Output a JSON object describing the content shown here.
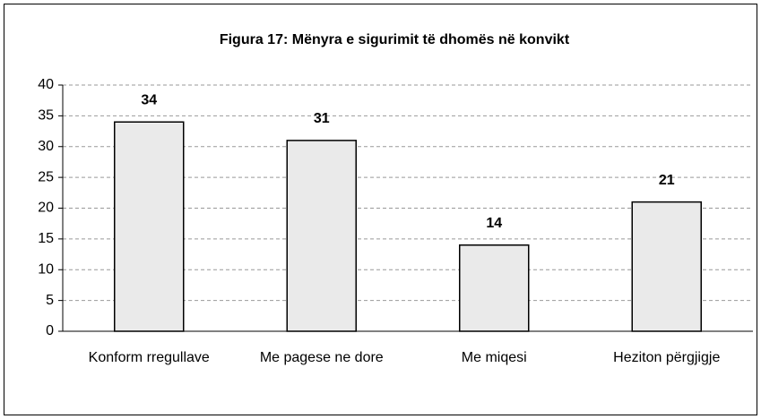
{
  "chart_data": {
    "type": "bar",
    "title": "Figura 17: Mënyra e sigurimit të dhomës në konvikt",
    "categories": [
      "Konform rregullave",
      "Me pagese ne dore",
      "Me miqesi",
      "Heziton përgjigje"
    ],
    "values": [
      34,
      31,
      14,
      21
    ],
    "color": "#eaeaea",
    "ylim": [
      0,
      40
    ],
    "yticks": [
      0,
      5,
      10,
      15,
      20,
      25,
      30,
      35,
      40
    ],
    "grid": true
  }
}
